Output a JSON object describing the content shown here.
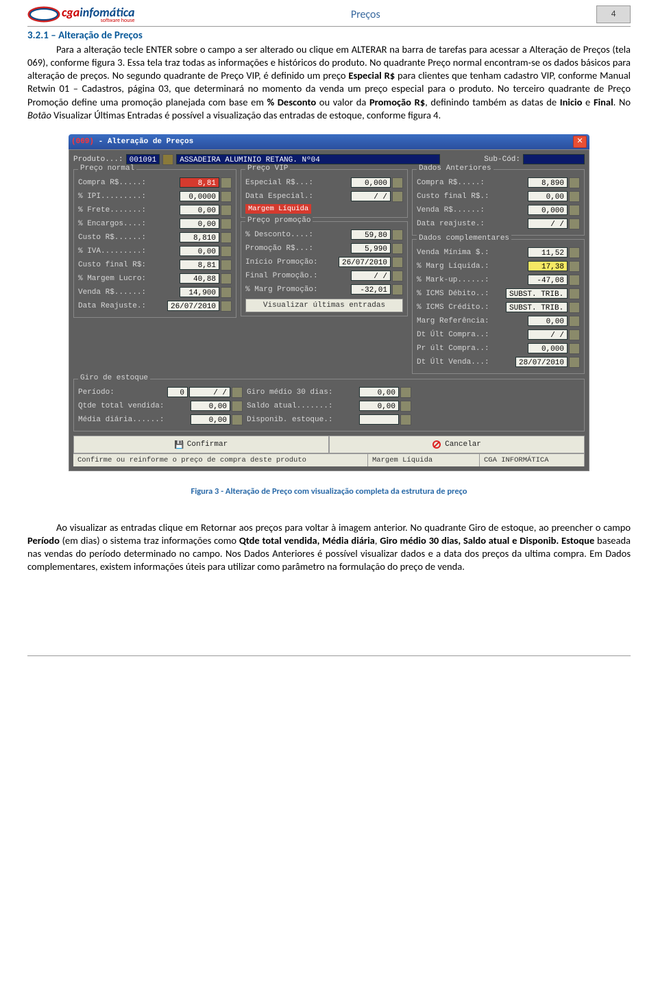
{
  "header": {
    "title": "Preços",
    "page_num": "4",
    "brand1": "cga",
    "brand2": "info",
    "brand3": "mática",
    "sub": "software house"
  },
  "sec_num": "3.2.1 – Alteração de Preços",
  "para1": "Para a alteração tecle ENTER sobre o campo a ser alterado ou clique em ALTERAR na barra de tarefas para acessar a Alteração de Preços (tela 069), conforme figura 3. Essa tela traz todas as informações e históricos do produto. No quadrante Preço normal encontram-se os dados básicos para alteração de preços. No segundo quadrante de Preço VIP, é definido um preço Especial R$ para clientes que tenham cadastro VIP, conforme Manual Retwin 01 – Cadastros, página 03, que determinará no momento da venda um preço especial para o produto. No terceiro quadrante de Preço Promoção define uma promoção planejada com base em % Desconto ou valor da Promoção R$, definindo também as datas de Inicio e Final. No Botão Visualizar Últimas Entradas é possível a visualização das entradas de estoque, conforme figura 4.",
  "caption": "Figura 3 - Alteração de Preço com visualização completa da estrutura de preço",
  "para2": "Ao visualizar as entradas clique em Retornar aos preços para voltar à imagem anterior. No quadrante Giro de estoque, ao preencher o campo Período (em dias) o sistema traz informações como Qtde total vendida, Média diária, Giro médio 30 dias, Saldo atual e Disponib. Estoque baseada nas vendas do período determinado no campo. Nos Dados Anteriores é possível visualizar dados e a data dos preços da ultima compra. Em Dados complementares, existem informações úteis para utilizar como parâmetro na formulação do preço de venda.",
  "app": {
    "title_code": "(069)",
    "title_rest": " - Alteração de Preços",
    "produto_lbl": "Produto...:",
    "produto_cod": "001091",
    "produto_desc": "ASSADEIRA ALUMINIO RETANG. Nº04",
    "subcod_lbl": "Sub-Cód:",
    "subcod_val": "",
    "preco_normal": {
      "title": "Preço normal",
      "rows": [
        {
          "k": "Compra R$.....:",
          "v": "8,81",
          "cls": "red"
        },
        {
          "k": "% IPI.........:",
          "v": "0,0000"
        },
        {
          "k": "% Frete.......:",
          "v": "0,00"
        },
        {
          "k": "% Encargos....:",
          "v": "0,00"
        },
        {
          "k": "Custo R$......:",
          "v": "8,810"
        },
        {
          "k": "% IVA.........:",
          "v": "0,00"
        },
        {
          "k": "Custo final R$:",
          "v": "8,81"
        },
        {
          "k": "% Margem Lucro:",
          "v": "40,88"
        },
        {
          "k": "Venda R$......:",
          "v": "14,900"
        },
        {
          "k": "Data Reajuste.:",
          "v": "26/07/2010",
          "date": true,
          "cls": "wht"
        }
      ]
    },
    "preco_vip": {
      "title": "Preço VIP",
      "rows": [
        {
          "k": "Especial R$...:",
          "v": "0,000"
        },
        {
          "k": "Data Especial.:",
          "v": "  /  /",
          "date": true,
          "cls": "wht"
        }
      ],
      "tag": "Margem Líquida"
    },
    "preco_promo": {
      "title": "Preço promoção",
      "rows": [
        {
          "k": "% Desconto....:",
          "v": "59,80"
        },
        {
          "k": "Promoção R$...:",
          "v": "5,990"
        },
        {
          "k": "Início Promoção:",
          "v": "26/07/2010",
          "date": true,
          "cls": "wht"
        },
        {
          "k": "Final Promoção.:",
          "v": "  /  /",
          "date": true,
          "cls": "wht"
        },
        {
          "k": "% Marg Promoção:",
          "v": "-32,01"
        }
      ],
      "button": "Visualizar últimas entradas"
    },
    "dados_ant": {
      "title": "Dados Anteriores",
      "rows": [
        {
          "k": "Compra R$.....:",
          "v": "8,890"
        },
        {
          "k": "Custo final R$.:",
          "v": "0,00"
        },
        {
          "k": "Venda R$......:",
          "v": "0,000"
        },
        {
          "k": "Data reajuste.:",
          "v": "  /  /",
          "date": true,
          "cls": "wht"
        }
      ]
    },
    "dados_comp": {
      "title": "Dados complementares",
      "rows": [
        {
          "k": "Venda Mínima $.:",
          "v": "11,52"
        },
        {
          "k": "% Marg Líquida.:",
          "v": "17,38",
          "cls": "yel"
        },
        {
          "k": "% Mark-up......:",
          "v": "-47,08"
        },
        {
          "k": "% ICMS Débito..:",
          "v": "SUBST. TRIB.",
          "cls": "wht",
          "wide": true
        },
        {
          "k": "% ICMS Crédito.:",
          "v": "SUBST. TRIB.",
          "cls": "wht",
          "wide": true
        },
        {
          "k": "Marg Referência:",
          "v": "0,00"
        },
        {
          "k": "Dt Últ Compra..:",
          "v": "  /  /",
          "date": true,
          "cls": "wht"
        },
        {
          "k": "Pr últ Compra..:",
          "v": "0,000"
        },
        {
          "k": "Dt Últ Venda...:",
          "v": "28/07/2010",
          "date": true,
          "cls": "wht"
        }
      ]
    },
    "giro": {
      "title": "Giro de estoque",
      "a": [
        {
          "k": "Período:",
          "v": "0",
          "extra": "  /  /",
          "date": true
        },
        {
          "k": "Qtde total vendida:",
          "v": "0,00"
        },
        {
          "k": "Média diária......:",
          "v": "0,00"
        }
      ],
      "b": [
        {
          "k": "Giro médio 30 dias:",
          "v": "0,00"
        },
        {
          "k": "Saldo atual.......:",
          "v": "0,00"
        },
        {
          "k": "Disponib. estoque.:",
          "v": ""
        }
      ]
    },
    "confirm": "Confirmar",
    "cancel": "Cancelar",
    "status1": "Confirme ou reinforme o preço de compra deste produto",
    "status2": "Margem Líquida",
    "status3": "CGA INFORMÁTICA"
  }
}
